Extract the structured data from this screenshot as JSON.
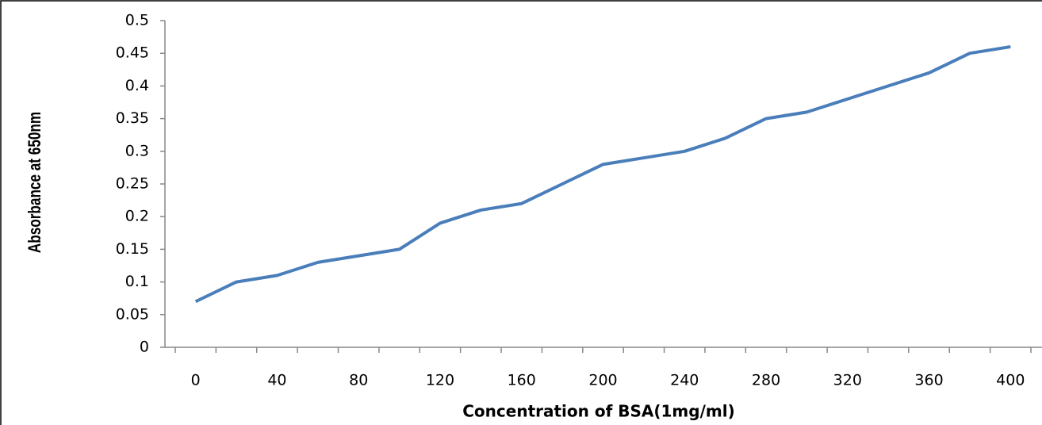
{
  "chart_data": {
    "type": "line",
    "x_label": "Concentration of BSA(1mg/ml)",
    "y_label": "Absorbance at 650nm",
    "categories": [
      0,
      null,
      40,
      null,
      80,
      null,
      120,
      null,
      160,
      null,
      200,
      null,
      240,
      null,
      280,
      null,
      320,
      null,
      360,
      null,
      400
    ],
    "series": [
      {
        "color": "#4a7ebb",
        "values": [
          0.07,
          0.1,
          0.11,
          0.13,
          0.14,
          0.15,
          0.19,
          0.21,
          0.22,
          0.25,
          0.28,
          0.29,
          0.3,
          0.32,
          0.35,
          0.36,
          0.38,
          0.4,
          0.42,
          0.45,
          0.46
        ]
      }
    ],
    "ylim": [
      0,
      0.5
    ],
    "yticks": [
      0,
      0.05,
      0.1,
      0.15,
      0.2,
      0.25,
      0.3,
      0.35,
      0.4,
      0.45,
      0.5
    ],
    "grid": false
  }
}
